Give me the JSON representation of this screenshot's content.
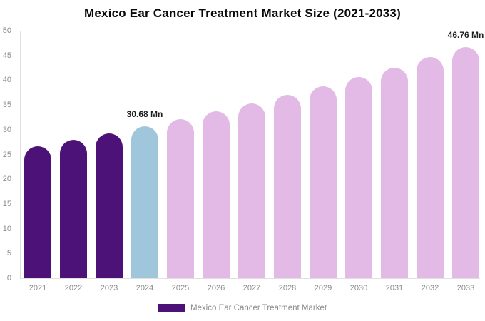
{
  "chart_data": {
    "type": "bar",
    "title": "Mexico Ear Cancer Treatment Market Size (2021-2033)",
    "categories": [
      "2021",
      "2022",
      "2023",
      "2024",
      "2025",
      "2026",
      "2027",
      "2028",
      "2029",
      "2030",
      "2031",
      "2032",
      "2033"
    ],
    "values": [
      26.66,
      27.94,
      29.28,
      30.68,
      32.15,
      33.69,
      35.3,
      37.0,
      38.77,
      40.63,
      42.57,
      44.61,
      46.76
    ],
    "unit": "Mn",
    "xlabel": "",
    "ylabel": "",
    "ylim": [
      0,
      50
    ],
    "ytick_step": 5,
    "grid": false,
    "legend_position": "bottom",
    "colors": {
      "historical": "#4C1277",
      "current": "#A0C6DC",
      "forecast": "#E3B9E5",
      "axis_line": "#e0e0e0",
      "tick_text": "#8c8c8c",
      "title_text": "#0a0a0a",
      "value_label_text": "#1f1f1f"
    },
    "roles": [
      "historical",
      "historical",
      "historical",
      "current",
      "forecast",
      "forecast",
      "forecast",
      "forecast",
      "forecast",
      "forecast",
      "forecast",
      "forecast",
      "forecast"
    ],
    "annotations": [
      {
        "category": "2024",
        "text": "30.68 Mn"
      },
      {
        "category": "2033",
        "text": "46.76 Mn"
      }
    ],
    "legend": [
      {
        "label": "Mexico Ear Cancer Treatment Market",
        "color": "#4C1277"
      }
    ]
  }
}
